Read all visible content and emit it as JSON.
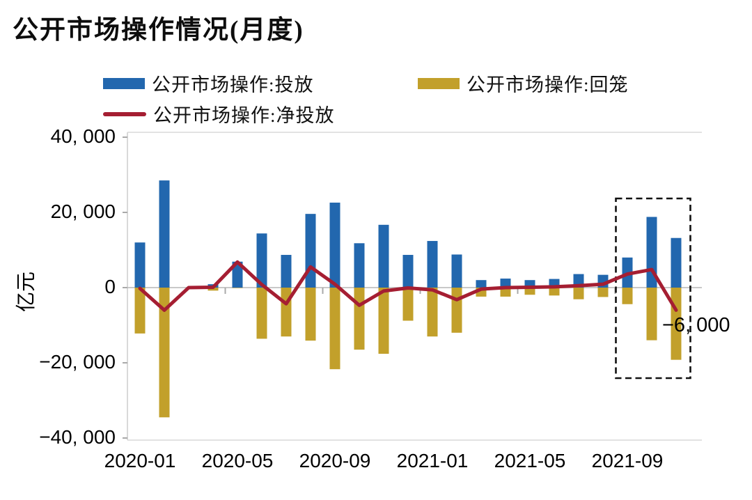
{
  "title": "公开市场操作情况(月度)",
  "legend": {
    "injection": "公开市场操作:投放",
    "withdrawal": "公开市场操作:回笼",
    "net": "公开市场操作:净投放"
  },
  "colors": {
    "injection": "#2267AE",
    "withdrawal": "#C2A02B",
    "net": "#A51E32",
    "zero_line": "#C9C9C9",
    "frame": "#D9D9D9",
    "tick": "#A9A9A9",
    "highlight_box": "#111111",
    "text": "#000000"
  },
  "y_axis": {
    "unit": "亿元",
    "tick_labels": [
      "40, 000",
      "20, 000",
      "0",
      "−20, 000",
      "−40, 000"
    ],
    "tick_values": [
      40000,
      20000,
      0,
      -20000,
      -40000
    ],
    "min": -40000,
    "max": 40000
  },
  "x_axis": {
    "tick_labels": [
      "2020-01",
      "2020-05",
      "2020-09",
      "2021-01",
      "2021-05",
      "2021-09"
    ],
    "label_every_n_months": 4
  },
  "annotation": {
    "text": "−6, 000",
    "month": "2021-11",
    "value": -6000
  },
  "highlight_box": {
    "from_month": "2021-09",
    "to_month": "2021-11"
  },
  "chart_data": {
    "type": "bar+line",
    "title": "公开市场操作情况(月度)",
    "ylabel": "亿元",
    "ylim": [
      -40000,
      40000
    ],
    "grid": false,
    "legend_position": "top",
    "categories": [
      "2020-01",
      "2020-02",
      "2020-03",
      "2020-04",
      "2020-05",
      "2020-06",
      "2020-07",
      "2020-08",
      "2020-09",
      "2020-10",
      "2020-11",
      "2020-12",
      "2021-01",
      "2021-02",
      "2021-03",
      "2021-04",
      "2021-05",
      "2021-06",
      "2021-07",
      "2021-08",
      "2021-09",
      "2021-10",
      "2021-11"
    ],
    "series": [
      {
        "name": "公开市场操作:投放",
        "type": "bar",
        "color": "#2267AE",
        "values": [
          12000,
          28500,
          0,
          900,
          6900,
          14400,
          8700,
          19600,
          22600,
          11800,
          16700,
          8700,
          12400,
          8800,
          2000,
          2400,
          2000,
          2300,
          3600,
          3400,
          8000,
          18800,
          13200
        ]
      },
      {
        "name": "公开市场操作:回笼",
        "type": "bar",
        "color": "#C2A02B",
        "values": [
          -12200,
          -34500,
          0,
          -800,
          -100,
          -13600,
          -13000,
          -14100,
          -21700,
          -16500,
          -17600,
          -8800,
          -13000,
          -12000,
          -2400,
          -2400,
          -1900,
          -2100,
          -3100,
          -2500,
          -4400,
          -14000,
          -19200
        ]
      },
      {
        "name": "公开市场操作:净投放",
        "type": "line",
        "color": "#A51E32",
        "values": [
          -200,
          -6000,
          0,
          100,
          6800,
          800,
          -4300,
          5500,
          900,
          -4700,
          -900,
          -100,
          -600,
          -3200,
          -400,
          0,
          100,
          200,
          500,
          900,
          3600,
          4800,
          -6000
        ]
      }
    ]
  }
}
